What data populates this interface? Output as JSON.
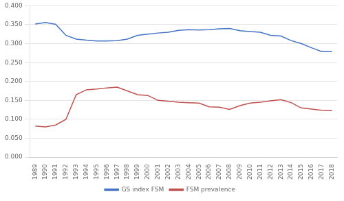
{
  "chart_data": {
    "type": "line",
    "x": [
      1989,
      1990,
      1991,
      1992,
      1993,
      1994,
      1995,
      1996,
      1997,
      1998,
      1999,
      2000,
      2001,
      2002,
      2003,
      2004,
      2005,
      2006,
      2007,
      2008,
      2009,
      2010,
      2011,
      2012,
      2013,
      2014,
      2015,
      2016,
      2017,
      2018
    ],
    "series": [
      {
        "name": "GS index FSM",
        "color": "#4472c4",
        "values": [
          0.352,
          0.356,
          0.351,
          0.322,
          0.312,
          0.309,
          0.307,
          0.307,
          0.308,
          0.312,
          0.322,
          0.325,
          0.328,
          0.33,
          0.335,
          0.337,
          0.336,
          0.337,
          0.339,
          0.34,
          0.334,
          0.332,
          0.33,
          0.322,
          0.32,
          0.308,
          0.3,
          0.289,
          0.279,
          0.279
        ]
      },
      {
        "name": "FSM prevalence",
        "color": "#c0504d",
        "values": [
          0.082,
          0.08,
          0.085,
          0.1,
          0.165,
          0.178,
          0.18,
          0.183,
          0.185,
          0.175,
          0.165,
          0.163,
          0.15,
          0.148,
          0.145,
          0.144,
          0.143,
          0.133,
          0.132,
          0.126,
          0.136,
          0.143,
          0.145,
          0.149,
          0.152,
          0.144,
          0.13,
          0.127,
          0.124,
          0.123
        ]
      }
    ],
    "xlim": [
      1988.5,
      2018.5
    ],
    "xticks": [
      1989,
      1990,
      1991,
      1992,
      1993,
      1994,
      1995,
      1996,
      1997,
      1998,
      1999,
      2000,
      2001,
      2002,
      2003,
      2004,
      2005,
      2006,
      2007,
      2008,
      2009,
      2010,
      2011,
      2012,
      2013,
      2014,
      2015,
      2016,
      2017,
      2018
    ],
    "ylim": [
      0.0,
      0.4
    ],
    "yticks": [
      {
        "value": 0.0,
        "label": "0.000"
      },
      {
        "value": 0.05,
        "label": "0.050"
      },
      {
        "value": 0.1,
        "label": "0.100"
      },
      {
        "value": 0.15,
        "label": "0.150"
      },
      {
        "value": 0.2,
        "label": "0.200"
      },
      {
        "value": 0.25,
        "label": "0.250"
      },
      {
        "value": 0.3,
        "label": "0.300"
      },
      {
        "value": 0.35,
        "label": "0.350"
      },
      {
        "value": 0.4,
        "label": "0.400"
      }
    ],
    "grid": "y",
    "legend": "bottom"
  }
}
